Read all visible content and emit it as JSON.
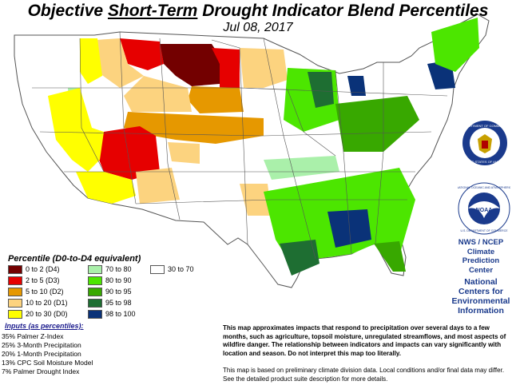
{
  "header": {
    "title_prefix": "Objective ",
    "title_emph": "Short-Term",
    "title_suffix": " Drought Indicator Blend Percentiles",
    "date": "Jul 08, 2017"
  },
  "legend": {
    "title": "Percentile  (D0-to-D4 equivalent)",
    "items": [
      {
        "label": "0 to 2  (D4)",
        "color": "#730000"
      },
      {
        "label": "2 to 5  (D3)",
        "color": "#e60000"
      },
      {
        "label": "5 to 10  (D2)",
        "color": "#e69800"
      },
      {
        "label": "10 to 20  (D1)",
        "color": "#fcd37f"
      },
      {
        "label": "20 to 30  (D0)",
        "color": "#ffff00"
      },
      {
        "label": "70 to 80",
        "color": "#aaf0aa"
      },
      {
        "label": "80 to 90",
        "color": "#4ce600"
      },
      {
        "label": "90 to 95",
        "color": "#38a800"
      },
      {
        "label": "95 to 98",
        "color": "#1e6e32"
      },
      {
        "label": "98 to 100",
        "color": "#0a3278"
      },
      {
        "label": "30 to 70",
        "color": "#ffffff"
      }
    ]
  },
  "inputs": {
    "title": "Inputs (as percentiles):",
    "rows": [
      {
        "pct": "35%",
        "name": "Palmer Z-Index"
      },
      {
        "pct": "25%",
        "name": "3-Month Precipitation"
      },
      {
        "pct": "20%",
        "name": "1-Month Precipitation"
      },
      {
        "pct": "13%",
        "name": "CPC Soil Moisture Model"
      },
      {
        "pct": "7%",
        "name": "Palmer Drought Index"
      }
    ]
  },
  "notes": {
    "main": "This map approximates impacts that respond to precipitation over several days to a few months, such as agriculture, topsoil moisture, unregulated streamflows, and most aspects of wildfire danger. The relationship between indicators and impacts can vary significantly with location and season. Do not interpret this map too literally.",
    "disclaimer": "This map is based on preliminary climate division data. Local conditions and/or final data may differ. See the detailed product suite description for more details."
  },
  "agency": {
    "line1": "NWS / NCEP",
    "line2": "Climate",
    "line3": "Prediction",
    "line4": "Center",
    "line5": "National",
    "line6": "Centers for",
    "line7": "Environmental",
    "line8": "Information"
  },
  "seals": {
    "commerce_text": "DEPARTMENT OF COMMERCE · UNITED STATES OF AMERICA",
    "noaa_ring_text": "NATIONAL OCEANIC AND ATMOSPHERIC ADMINISTRATION · U.S. DEPARTMENT OF COMMERCE",
    "noaa_center": "NOAA"
  },
  "colors": {
    "state_border": "#555555",
    "agency_text": "#1a3a8c"
  }
}
